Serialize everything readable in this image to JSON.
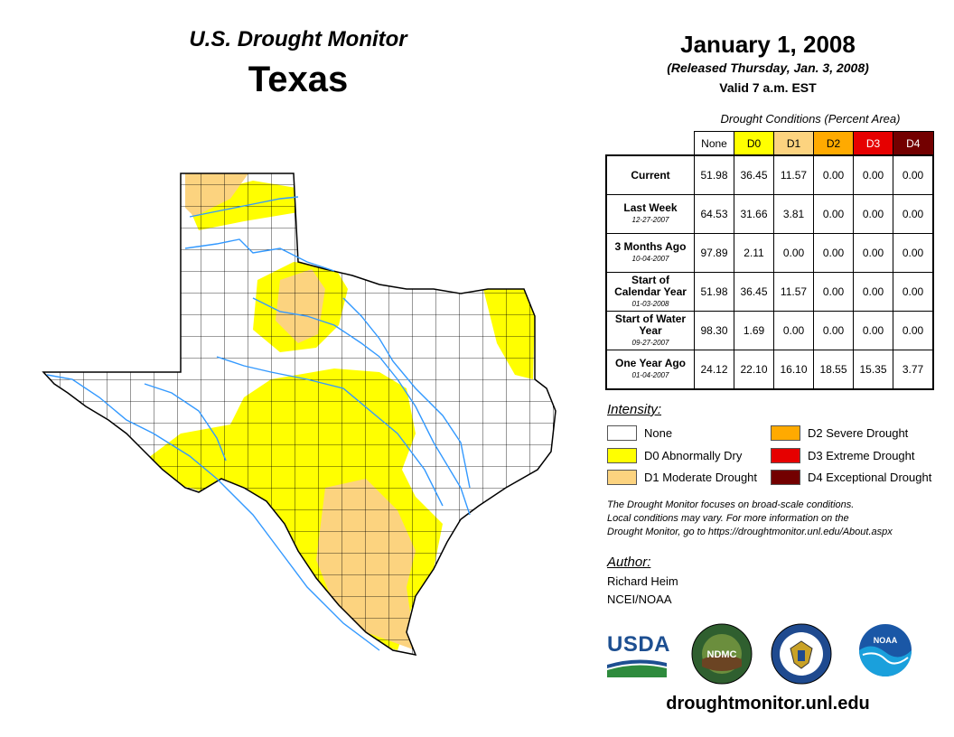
{
  "header": {
    "monitor_title": "U.S. Drought Monitor",
    "state": "Texas",
    "date": "January 1, 2008",
    "released": "(Released Thursday, Jan. 3, 2008)",
    "valid": "Valid 7 a.m. EST"
  },
  "table": {
    "caption": "Drought Conditions (Percent Area)",
    "columns": [
      "None",
      "D0",
      "D1",
      "D2",
      "D3",
      "D4"
    ],
    "column_colors": [
      "#ffffff",
      "#ffff00",
      "#fcd37f",
      "#ffaa00",
      "#e60000",
      "#730000"
    ],
    "rows": [
      {
        "label": "Current",
        "date": "",
        "values": [
          "51.98",
          "36.45",
          "11.57",
          "0.00",
          "0.00",
          "0.00"
        ]
      },
      {
        "label": "Last Week",
        "date": "12-27-2007",
        "values": [
          "64.53",
          "31.66",
          "3.81",
          "0.00",
          "0.00",
          "0.00"
        ]
      },
      {
        "label": "3 Months Ago",
        "date": "10-04-2007",
        "values": [
          "97.89",
          "2.11",
          "0.00",
          "0.00",
          "0.00",
          "0.00"
        ]
      },
      {
        "label": "Start of Calendar Year",
        "date": "01-03-2008",
        "values": [
          "51.98",
          "36.45",
          "11.57",
          "0.00",
          "0.00",
          "0.00"
        ]
      },
      {
        "label": "Start of Water Year",
        "date": "09-27-2007",
        "values": [
          "98.30",
          "1.69",
          "0.00",
          "0.00",
          "0.00",
          "0.00"
        ]
      },
      {
        "label": "One Year Ago",
        "date": "01-04-2007",
        "values": [
          "24.12",
          "22.10",
          "16.10",
          "18.55",
          "15.35",
          "3.77"
        ]
      }
    ]
  },
  "legend": {
    "heading": "Intensity:",
    "items": [
      {
        "label": "None",
        "color": "#ffffff"
      },
      {
        "label": "D0 Abnormally Dry",
        "color": "#ffff00"
      },
      {
        "label": "D1 Moderate Drought",
        "color": "#fcd37f"
      },
      {
        "label": "D2 Severe Drought",
        "color": "#ffaa00"
      },
      {
        "label": "D3 Extreme Drought",
        "color": "#e60000"
      },
      {
        "label": "D4 Exceptional Drought",
        "color": "#730000"
      }
    ]
  },
  "disclaimer": [
    "The Drought Monitor focuses on broad-scale conditions.",
    "Local conditions may vary. For more information on the",
    "Drought Monitor, go to https://droughtmonitor.unl.edu/About.aspx"
  ],
  "author": {
    "heading": "Author:",
    "name": "Richard Heim",
    "org": "NCEI/NOAA"
  },
  "logos": {
    "usda": "USDA",
    "ndmc": "NDMC",
    "noaa": "NOAA"
  },
  "footer_url": "droughtmonitor.unl.edu"
}
